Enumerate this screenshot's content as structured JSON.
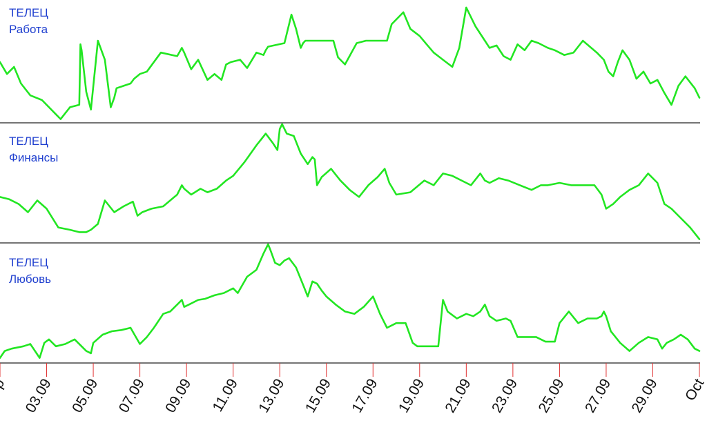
{
  "chart_data": {
    "type": "line",
    "line_color": "#22e622",
    "label_color": "#1f3fcf",
    "tick_color": "#e03030",
    "x_ticks": [
      "Sep",
      "03.09",
      "05.09",
      "07.09",
      "09.09",
      "11.09",
      "13.09",
      "15.09",
      "17.09",
      "19.09",
      "21.09",
      "23.09",
      "25.09",
      "27.09",
      "29.09",
      "Oct"
    ],
    "panels": [
      {
        "title": "ТЕЛЕЦ",
        "subtitle": "Работа",
        "x": [
          1.0,
          1.3,
          1.6,
          1.9,
          2.3,
          2.8,
          3.4,
          3.6,
          4.0,
          4.4,
          4.45,
          4.5,
          4.7,
          4.9,
          5.2,
          5.5,
          5.75,
          5.9,
          6.0,
          6.3,
          6.6,
          6.75,
          7.0,
          7.3,
          7.9,
          8.6,
          8.8,
          8.9,
          9.2,
          9.5,
          9.9,
          10.2,
          10.5,
          10.7,
          10.9,
          11.3,
          11.6,
          12.0,
          12.3,
          12.4,
          12.5,
          13.2,
          13.5,
          13.7,
          13.9,
          14.0,
          14.1,
          14.5,
          15.3,
          15.5,
          15.8,
          16.3,
          16.7,
          17.2,
          17.6,
          17.8,
          18.3,
          18.6,
          19.0,
          19.3,
          19.6,
          20.0,
          20.4,
          20.7,
          21.0,
          21.4,
          21.8,
          22.0,
          22.3,
          22.6,
          22.9,
          23.2,
          23.5,
          23.8,
          24.1,
          24.5,
          24.8,
          25.2,
          25.6,
          26.0,
          26.6,
          26.9,
          27.1,
          27.3,
          27.5,
          27.7,
          28.0,
          28.3,
          28.6,
          28.9,
          29.2,
          29.5,
          29.8,
          30.1,
          30.4,
          30.8,
          31.0
        ],
        "y": [
          50,
          40,
          46,
          32,
          22,
          18,
          6,
          2,
          12,
          14,
          65,
          60,
          25,
          10,
          68,
          52,
          12,
          20,
          28,
          30,
          32,
          36,
          40,
          42,
          58,
          55,
          62,
          58,
          44,
          52,
          35,
          40,
          35,
          48,
          50,
          52,
          45,
          58,
          56,
          60,
          63,
          66,
          90,
          78,
          62,
          66,
          68,
          68,
          68,
          54,
          48,
          66,
          68,
          68,
          68,
          82,
          92,
          78,
          72,
          65,
          58,
          52,
          46,
          62,
          96,
          80,
          68,
          62,
          64,
          55,
          52,
          65,
          60,
          68,
          66,
          62,
          60,
          56,
          58,
          68,
          58,
          52,
          42,
          38,
          50,
          60,
          52,
          36,
          42,
          32,
          35,
          24,
          14,
          30,
          38,
          28,
          20
        ]
      },
      {
        "title": "ТЕЛЕЦ",
        "subtitle": "Финансы",
        "x": [
          1.0,
          1.4,
          1.8,
          2.2,
          2.6,
          3.0,
          3.5,
          4.0,
          4.4,
          4.7,
          4.9,
          5.2,
          5.5,
          5.9,
          6.3,
          6.7,
          6.9,
          7.1,
          7.5,
          8.0,
          8.6,
          8.8,
          8.9,
          9.2,
          9.6,
          9.9,
          10.3,
          10.7,
          11.0,
          11.5,
          12.0,
          12.4,
          12.7,
          12.9,
          13.0,
          13.1,
          13.3,
          13.6,
          13.9,
          14.2,
          14.4,
          14.5,
          14.6,
          14.8,
          15.2,
          15.6,
          16.0,
          16.4,
          16.8,
          17.2,
          17.5,
          17.7,
          18.0,
          18.6,
          19.2,
          19.6,
          20.0,
          20.4,
          20.8,
          21.2,
          21.6,
          21.8,
          22.0,
          22.4,
          22.8,
          23.3,
          23.8,
          24.2,
          24.5,
          25.0,
          25.5,
          26.0,
          26.5,
          26.8,
          27.0,
          27.3,
          27.6,
          28.0,
          28.4,
          28.8,
          29.2,
          29.5,
          29.8,
          30.2,
          30.6,
          31.0
        ],
        "y": [
          38,
          36,
          32,
          25,
          35,
          28,
          12,
          10,
          8,
          8,
          10,
          15,
          35,
          25,
          30,
          34,
          22,
          25,
          28,
          30,
          40,
          48,
          45,
          40,
          45,
          42,
          45,
          52,
          56,
          68,
          82,
          92,
          84,
          78,
          96,
          100,
          92,
          90,
          75,
          66,
          72,
          70,
          48,
          55,
          62,
          52,
          44,
          38,
          48,
          55,
          62,
          50,
          40,
          42,
          52,
          48,
          58,
          56,
          52,
          48,
          58,
          52,
          50,
          54,
          52,
          48,
          44,
          48,
          48,
          50,
          48,
          48,
          48,
          40,
          28,
          32,
          38,
          44,
          48,
          58,
          50,
          32,
          28,
          20,
          12,
          2
        ]
      },
      {
        "title": "ТЕЛЕЦ",
        "subtitle": "Любовь",
        "x": [
          1.0,
          1.2,
          1.5,
          2.0,
          2.3,
          2.5,
          2.7,
          2.9,
          3.1,
          3.4,
          3.8,
          4.2,
          4.7,
          4.9,
          5.0,
          5.4,
          5.8,
          6.2,
          6.6,
          7.0,
          7.3,
          7.6,
          8.0,
          8.3,
          8.6,
          8.8,
          8.9,
          9.1,
          9.5,
          9.8,
          10.2,
          10.6,
          11.0,
          11.2,
          11.6,
          12.0,
          12.3,
          12.5,
          12.6,
          12.8,
          13.0,
          13.2,
          13.4,
          13.7,
          14.0,
          14.2,
          14.4,
          14.6,
          14.8,
          15.0,
          15.4,
          15.8,
          16.2,
          16.6,
          17.0,
          17.3,
          17.6,
          17.8,
          18.0,
          18.4,
          18.7,
          18.9,
          19.2,
          19.6,
          19.8,
          20.0,
          20.2,
          20.6,
          21.0,
          21.3,
          21.6,
          21.8,
          22.0,
          22.3,
          22.7,
          22.9,
          23.2,
          23.6,
          24.0,
          24.4,
          24.8,
          25.0,
          25.4,
          25.8,
          26.2,
          26.6,
          26.8,
          26.9,
          27.0,
          27.2,
          27.6,
          28.0,
          28.4,
          28.8,
          29.2,
          29.4,
          29.6,
          29.9,
          30.2,
          30.5,
          30.8,
          31.0
        ],
        "y": [
          2,
          8,
          10,
          12,
          14,
          8,
          2,
          15,
          18,
          12,
          14,
          18,
          8,
          6,
          15,
          22,
          25,
          26,
          28,
          14,
          20,
          28,
          40,
          42,
          48,
          52,
          46,
          48,
          52,
          53,
          56,
          58,
          62,
          58,
          72,
          78,
          92,
          100,
          95,
          84,
          82,
          86,
          88,
          80,
          65,
          55,
          68,
          66,
          60,
          55,
          48,
          42,
          40,
          46,
          55,
          40,
          28,
          30,
          32,
          32,
          15,
          12,
          12,
          12,
          12,
          52,
          42,
          36,
          40,
          38,
          42,
          48,
          38,
          34,
          36,
          34,
          20,
          20,
          20,
          16,
          16,
          32,
          42,
          32,
          36,
          36,
          38,
          42,
          38,
          25,
          15,
          8,
          15,
          20,
          18,
          10,
          15,
          18,
          22,
          18,
          10,
          8
        ]
      }
    ],
    "xlim": [
      1,
      31
    ],
    "ylim": [
      0,
      100
    ]
  }
}
